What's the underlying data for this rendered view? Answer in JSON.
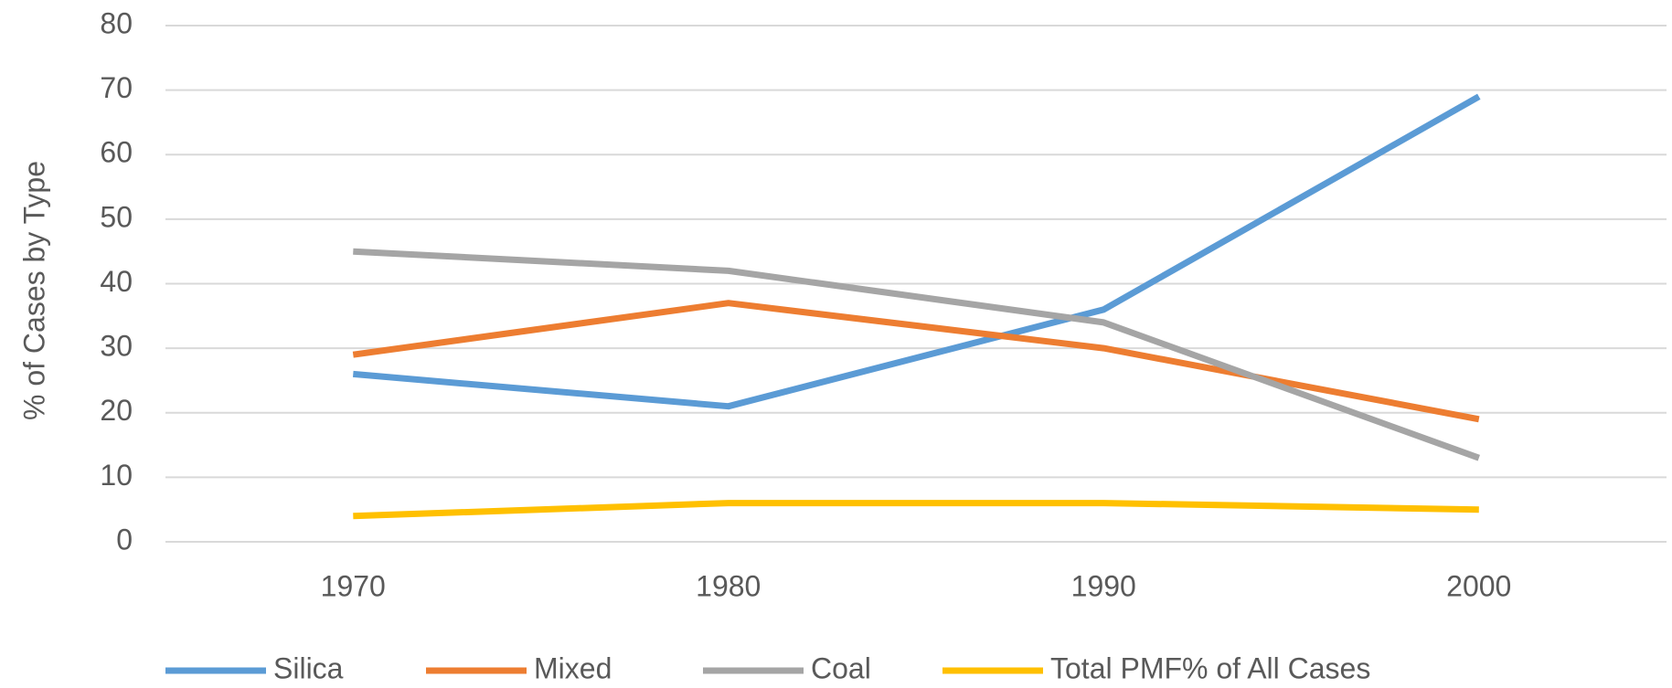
{
  "chart_data": {
    "type": "line",
    "y_label": "% of Cases by Type",
    "categories": [
      "1970",
      "1980",
      "1990",
      "2000"
    ],
    "series": [
      {
        "name": "Silica",
        "color": "#5b9bd5",
        "values": [
          26,
          21,
          36,
          69
        ]
      },
      {
        "name": "Mixed",
        "color": "#ed7d31",
        "values": [
          29,
          37,
          30,
          19
        ]
      },
      {
        "name": "Coal",
        "color": "#a5a5a5",
        "values": [
          45,
          42,
          34,
          13
        ]
      },
      {
        "name": "Total  PMF% of All Cases",
        "color": "#ffc000",
        "values": [
          4,
          6,
          6,
          5
        ]
      }
    ],
    "ylim": [
      0,
      80
    ],
    "yticks": [
      0,
      10,
      20,
      30,
      40,
      50,
      60,
      70,
      80
    ],
    "grid": true,
    "legend": "bottom"
  }
}
